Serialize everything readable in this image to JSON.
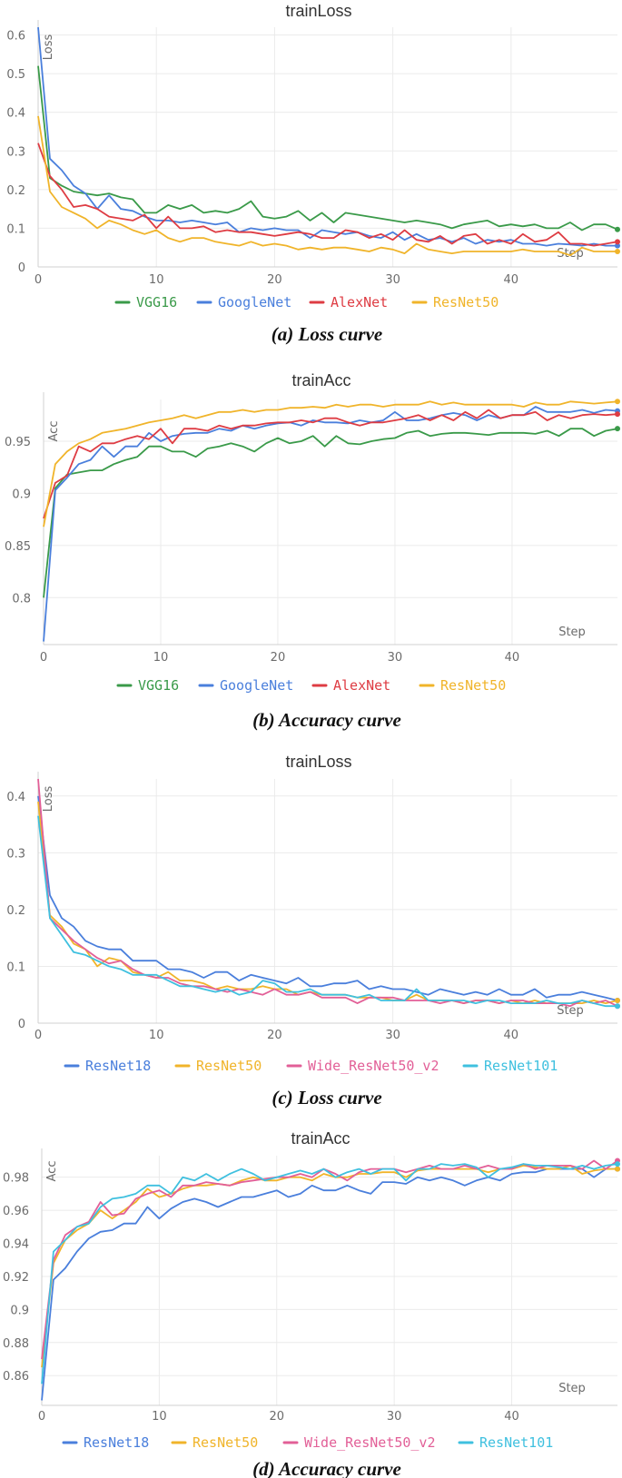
{
  "colors": {
    "VGG16": "#3a9a49",
    "GoogleNet": "#4a7fdc",
    "AlexNet": "#de3c43",
    "ResNet50": "#f0b42a",
    "ResNet18": "#4a7fdc",
    "Wide_ResNet50_v2": "#e25f97",
    "ResNet101": "#3fc0df"
  },
  "chart_data": [
    {
      "type": "line",
      "title": "trainLoss",
      "ylabel": "Loss",
      "xlabel": "Step",
      "caption": "(a) Loss curve",
      "xlim": [
        0,
        49
      ],
      "ylim": [
        0,
        0.62
      ],
      "yticks": [
        0,
        0.1,
        0.2,
        0.3,
        0.4,
        0.5,
        0.6
      ],
      "ytick_labels": [
        "0",
        "0.1",
        "0.2",
        "0.3",
        "0.4",
        "0.5",
        "0.6"
      ],
      "xticks": [
        0,
        10,
        20,
        30,
        40
      ],
      "xtick_labels": [
        "0",
        "10",
        "20",
        "30",
        "40"
      ],
      "legend": [
        "VGG16",
        "GoogleNet",
        "AlexNet",
        "ResNet50"
      ],
      "series": [
        {
          "name": "VGG16",
          "values": [
            0.52,
            0.23,
            0.21,
            0.195,
            0.19,
            0.185,
            0.19,
            0.18,
            0.175,
            0.14,
            0.14,
            0.16,
            0.15,
            0.16,
            0.14,
            0.145,
            0.14,
            0.15,
            0.17,
            0.13,
            0.125,
            0.13,
            0.145,
            0.12,
            0.14,
            0.115,
            0.14,
            0.135,
            0.13,
            0.125,
            0.12,
            0.115,
            0.12,
            0.115,
            0.11,
            0.1,
            0.11,
            0.115,
            0.12,
            0.105,
            0.11,
            0.105,
            0.11,
            0.1,
            0.1,
            0.115,
            0.095,
            0.11,
            0.11,
            0.097
          ]
        },
        {
          "name": "GoogleNet",
          "values": [
            0.62,
            0.28,
            0.25,
            0.21,
            0.19,
            0.15,
            0.185,
            0.15,
            0.145,
            0.13,
            0.12,
            0.12,
            0.115,
            0.12,
            0.115,
            0.11,
            0.115,
            0.09,
            0.1,
            0.095,
            0.1,
            0.095,
            0.095,
            0.075,
            0.095,
            0.09,
            0.085,
            0.09,
            0.08,
            0.075,
            0.09,
            0.07,
            0.085,
            0.07,
            0.075,
            0.065,
            0.075,
            0.06,
            0.07,
            0.065,
            0.07,
            0.06,
            0.06,
            0.055,
            0.06,
            0.058,
            0.055,
            0.06,
            0.055,
            0.055
          ]
        },
        {
          "name": "AlexNet",
          "values": [
            0.32,
            0.235,
            0.2,
            0.155,
            0.16,
            0.15,
            0.13,
            0.125,
            0.12,
            0.135,
            0.1,
            0.13,
            0.1,
            0.1,
            0.105,
            0.09,
            0.095,
            0.09,
            0.09,
            0.085,
            0.08,
            0.085,
            0.09,
            0.085,
            0.075,
            0.075,
            0.095,
            0.09,
            0.075,
            0.085,
            0.07,
            0.095,
            0.07,
            0.065,
            0.08,
            0.06,
            0.08,
            0.085,
            0.06,
            0.07,
            0.06,
            0.085,
            0.065,
            0.07,
            0.09,
            0.06,
            0.06,
            0.055,
            0.06,
            0.065
          ]
        },
        {
          "name": "ResNet50",
          "values": [
            0.39,
            0.195,
            0.155,
            0.14,
            0.125,
            0.1,
            0.12,
            0.11,
            0.095,
            0.085,
            0.095,
            0.075,
            0.065,
            0.075,
            0.075,
            0.065,
            0.06,
            0.055,
            0.065,
            0.055,
            0.06,
            0.055,
            0.045,
            0.05,
            0.045,
            0.05,
            0.05,
            0.045,
            0.04,
            0.05,
            0.045,
            0.035,
            0.06,
            0.045,
            0.04,
            0.035,
            0.04,
            0.04,
            0.04,
            0.04,
            0.04,
            0.045,
            0.04,
            0.04,
            0.04,
            0.03,
            0.05,
            0.04,
            0.04,
            0.04
          ]
        }
      ]
    },
    {
      "type": "line",
      "title": "trainAcc",
      "ylabel": "Acc",
      "xlabel": "Step",
      "caption": "(b) Accuracy curve",
      "xlim": [
        0,
        49
      ],
      "ylim": [
        0.755,
        0.99
      ],
      "yticks": [
        0.8,
        0.85,
        0.9,
        0.95
      ],
      "ytick_labels": [
        "0.8",
        "0.85",
        "0.9",
        "0.95"
      ],
      "xticks": [
        0,
        10,
        20,
        30,
        40
      ],
      "xtick_labels": [
        "0",
        "10",
        "20",
        "30",
        "40"
      ],
      "legend": [
        "VGG16",
        "GoogleNet",
        "AlexNet",
        "ResNet50"
      ],
      "series": [
        {
          "name": "VGG16",
          "values": [
            0.8,
            0.905,
            0.918,
            0.92,
            0.922,
            0.922,
            0.928,
            0.932,
            0.935,
            0.945,
            0.945,
            0.94,
            0.94,
            0.935,
            0.943,
            0.945,
            0.948,
            0.945,
            0.94,
            0.948,
            0.953,
            0.948,
            0.95,
            0.955,
            0.945,
            0.955,
            0.948,
            0.947,
            0.95,
            0.952,
            0.953,
            0.958,
            0.96,
            0.955,
            0.957,
            0.958,
            0.958,
            0.957,
            0.956,
            0.958,
            0.958,
            0.958,
            0.957,
            0.96,
            0.955,
            0.962,
            0.962,
            0.955,
            0.96,
            0.962
          ]
        },
        {
          "name": "GoogleNet",
          "values": [
            0.758,
            0.903,
            0.915,
            0.928,
            0.932,
            0.945,
            0.935,
            0.945,
            0.945,
            0.958,
            0.95,
            0.955,
            0.957,
            0.958,
            0.958,
            0.962,
            0.96,
            0.965,
            0.962,
            0.965,
            0.967,
            0.968,
            0.965,
            0.97,
            0.968,
            0.968,
            0.967,
            0.97,
            0.968,
            0.97,
            0.978,
            0.97,
            0.97,
            0.972,
            0.975,
            0.977,
            0.975,
            0.97,
            0.975,
            0.972,
            0.975,
            0.975,
            0.983,
            0.978,
            0.978,
            0.978,
            0.98,
            0.977,
            0.98,
            0.979
          ]
        },
        {
          "name": "AlexNet",
          "values": [
            0.876,
            0.91,
            0.917,
            0.945,
            0.94,
            0.948,
            0.948,
            0.952,
            0.955,
            0.952,
            0.962,
            0.948,
            0.962,
            0.962,
            0.96,
            0.965,
            0.962,
            0.965,
            0.965,
            0.967,
            0.968,
            0.968,
            0.97,
            0.968,
            0.972,
            0.972,
            0.968,
            0.965,
            0.968,
            0.968,
            0.97,
            0.972,
            0.975,
            0.97,
            0.975,
            0.97,
            0.978,
            0.972,
            0.98,
            0.972,
            0.975,
            0.975,
            0.978,
            0.97,
            0.975,
            0.972,
            0.975,
            0.976,
            0.975,
            0.976
          ]
        },
        {
          "name": "ResNet50",
          "values": [
            0.868,
            0.928,
            0.94,
            0.948,
            0.952,
            0.958,
            0.96,
            0.962,
            0.965,
            0.968,
            0.97,
            0.972,
            0.975,
            0.972,
            0.975,
            0.978,
            0.978,
            0.98,
            0.978,
            0.98,
            0.98,
            0.982,
            0.982,
            0.983,
            0.982,
            0.985,
            0.983,
            0.985,
            0.985,
            0.983,
            0.985,
            0.985,
            0.985,
            0.988,
            0.985,
            0.987,
            0.985,
            0.985,
            0.985,
            0.985,
            0.985,
            0.983,
            0.987,
            0.985,
            0.985,
            0.988,
            0.987,
            0.986,
            0.987,
            0.988
          ]
        }
      ]
    },
    {
      "type": "line",
      "title": "trainLoss",
      "ylabel": "Loss",
      "xlabel": "Step",
      "caption": "(c) Loss curve",
      "xlim": [
        0,
        49
      ],
      "ylim": [
        0,
        0.43
      ],
      "yticks": [
        0,
        0.1,
        0.2,
        0.3,
        0.4
      ],
      "ytick_labels": [
        "0",
        "0.1",
        "0.2",
        "0.3",
        "0.4"
      ],
      "xticks": [
        0,
        10,
        20,
        30,
        40
      ],
      "xtick_labels": [
        "0",
        "10",
        "20",
        "30",
        "40"
      ],
      "legend": [
        "ResNet18",
        "ResNet50",
        "Wide_ResNet50_v2",
        "ResNet101"
      ],
      "series": [
        {
          "name": "ResNet18",
          "values": [
            0.4,
            0.225,
            0.185,
            0.17,
            0.145,
            0.135,
            0.13,
            0.13,
            0.11,
            0.11,
            0.11,
            0.095,
            0.095,
            0.09,
            0.08,
            0.09,
            0.09,
            0.075,
            0.085,
            0.08,
            0.075,
            0.07,
            0.08,
            0.065,
            0.065,
            0.07,
            0.07,
            0.075,
            0.06,
            0.065,
            0.06,
            0.06,
            0.055,
            0.05,
            0.06,
            0.055,
            0.05,
            0.055,
            0.05,
            0.06,
            0.05,
            0.05,
            0.06,
            0.045,
            0.05,
            0.05,
            0.055,
            0.05,
            0.045,
            0.04
          ]
        },
        {
          "name": "ResNet50",
          "values": [
            0.39,
            0.19,
            0.17,
            0.14,
            0.13,
            0.1,
            0.115,
            0.11,
            0.09,
            0.085,
            0.08,
            0.09,
            0.075,
            0.075,
            0.07,
            0.06,
            0.065,
            0.06,
            0.06,
            0.065,
            0.06,
            0.06,
            0.05,
            0.055,
            0.05,
            0.05,
            0.05,
            0.045,
            0.045,
            0.045,
            0.04,
            0.04,
            0.05,
            0.04,
            0.04,
            0.04,
            0.035,
            0.04,
            0.04,
            0.035,
            0.04,
            0.035,
            0.04,
            0.035,
            0.035,
            0.035,
            0.035,
            0.04,
            0.035,
            0.04
          ]
        },
        {
          "name": "Wide_ResNet50_v2",
          "values": [
            0.43,
            0.185,
            0.165,
            0.145,
            0.13,
            0.115,
            0.105,
            0.11,
            0.095,
            0.085,
            0.08,
            0.08,
            0.07,
            0.065,
            0.065,
            0.06,
            0.055,
            0.06,
            0.055,
            0.05,
            0.06,
            0.05,
            0.05,
            0.055,
            0.045,
            0.045,
            0.045,
            0.035,
            0.045,
            0.045,
            0.045,
            0.04,
            0.04,
            0.04,
            0.035,
            0.04,
            0.035,
            0.04,
            0.04,
            0.035,
            0.04,
            0.04,
            0.035,
            0.035,
            0.035,
            0.03,
            0.04,
            0.035,
            0.04,
            0.03
          ]
        },
        {
          "name": "ResNet101",
          "values": [
            0.365,
            0.185,
            0.155,
            0.125,
            0.12,
            0.11,
            0.1,
            0.095,
            0.085,
            0.085,
            0.085,
            0.075,
            0.065,
            0.065,
            0.06,
            0.055,
            0.06,
            0.05,
            0.055,
            0.075,
            0.07,
            0.055,
            0.055,
            0.06,
            0.05,
            0.05,
            0.05,
            0.045,
            0.05,
            0.04,
            0.04,
            0.04,
            0.06,
            0.04,
            0.04,
            0.04,
            0.04,
            0.035,
            0.04,
            0.04,
            0.035,
            0.035,
            0.035,
            0.04,
            0.035,
            0.035,
            0.04,
            0.035,
            0.03,
            0.03
          ]
        }
      ]
    },
    {
      "type": "line",
      "title": "trainAcc",
      "ylabel": "Acc",
      "xlabel": "Step",
      "caption": "(d) Accuracy curve",
      "xlim": [
        0,
        49
      ],
      "ylim": [
        0.842,
        0.993
      ],
      "yticks": [
        0.86,
        0.88,
        0.9,
        0.92,
        0.94,
        0.96,
        0.98
      ],
      "ytick_labels": [
        "0.86",
        "0.88",
        "0.9",
        "0.92",
        "0.94",
        "0.96",
        "0.98"
      ],
      "xticks": [
        0,
        10,
        20,
        30,
        40
      ],
      "xtick_labels": [
        "0",
        "10",
        "20",
        "30",
        "40"
      ],
      "legend": [
        "ResNet18",
        "ResNet50",
        "Wide_ResNet50_v2",
        "ResNet101"
      ],
      "series": [
        {
          "name": "ResNet18",
          "values": [
            0.845,
            0.918,
            0.925,
            0.935,
            0.943,
            0.947,
            0.948,
            0.952,
            0.952,
            0.962,
            0.955,
            0.961,
            0.965,
            0.967,
            0.965,
            0.962,
            0.965,
            0.968,
            0.968,
            0.97,
            0.972,
            0.968,
            0.97,
            0.975,
            0.972,
            0.972,
            0.975,
            0.972,
            0.97,
            0.977,
            0.977,
            0.976,
            0.98,
            0.978,
            0.98,
            0.978,
            0.975,
            0.978,
            0.98,
            0.978,
            0.982,
            0.983,
            0.983,
            0.985,
            0.985,
            0.985,
            0.985,
            0.98,
            0.985,
            0.985
          ]
        },
        {
          "name": "ResNet50",
          "values": [
            0.865,
            0.928,
            0.942,
            0.948,
            0.952,
            0.96,
            0.955,
            0.96,
            0.965,
            0.973,
            0.968,
            0.97,
            0.973,
            0.975,
            0.975,
            0.976,
            0.975,
            0.978,
            0.98,
            0.978,
            0.978,
            0.98,
            0.98,
            0.978,
            0.982,
            0.98,
            0.98,
            0.982,
            0.982,
            0.983,
            0.983,
            0.98,
            0.984,
            0.985,
            0.985,
            0.985,
            0.985,
            0.985,
            0.983,
            0.985,
            0.985,
            0.987,
            0.986,
            0.985,
            0.985,
            0.987,
            0.982,
            0.984,
            0.985,
            0.985
          ]
        },
        {
          "name": "Wide_ResNet50_v2",
          "values": [
            0.87,
            0.93,
            0.945,
            0.95,
            0.953,
            0.965,
            0.957,
            0.958,
            0.967,
            0.97,
            0.972,
            0.968,
            0.975,
            0.975,
            0.977,
            0.976,
            0.975,
            0.977,
            0.978,
            0.979,
            0.98,
            0.98,
            0.982,
            0.98,
            0.985,
            0.982,
            0.978,
            0.983,
            0.985,
            0.985,
            0.985,
            0.983,
            0.985,
            0.987,
            0.985,
            0.985,
            0.987,
            0.985,
            0.987,
            0.985,
            0.985,
            0.988,
            0.985,
            0.987,
            0.987,
            0.987,
            0.985,
            0.99,
            0.985,
            0.99
          ]
        },
        {
          "name": "ResNet101",
          "values": [
            0.855,
            0.935,
            0.942,
            0.95,
            0.952,
            0.962,
            0.967,
            0.968,
            0.97,
            0.975,
            0.975,
            0.97,
            0.98,
            0.978,
            0.982,
            0.978,
            0.982,
            0.985,
            0.982,
            0.978,
            0.98,
            0.982,
            0.984,
            0.982,
            0.985,
            0.98,
            0.983,
            0.985,
            0.982,
            0.985,
            0.985,
            0.978,
            0.985,
            0.985,
            0.988,
            0.987,
            0.988,
            0.986,
            0.98,
            0.985,
            0.986,
            0.988,
            0.987,
            0.987,
            0.986,
            0.985,
            0.987,
            0.985,
            0.987,
            0.988
          ]
        }
      ]
    }
  ]
}
